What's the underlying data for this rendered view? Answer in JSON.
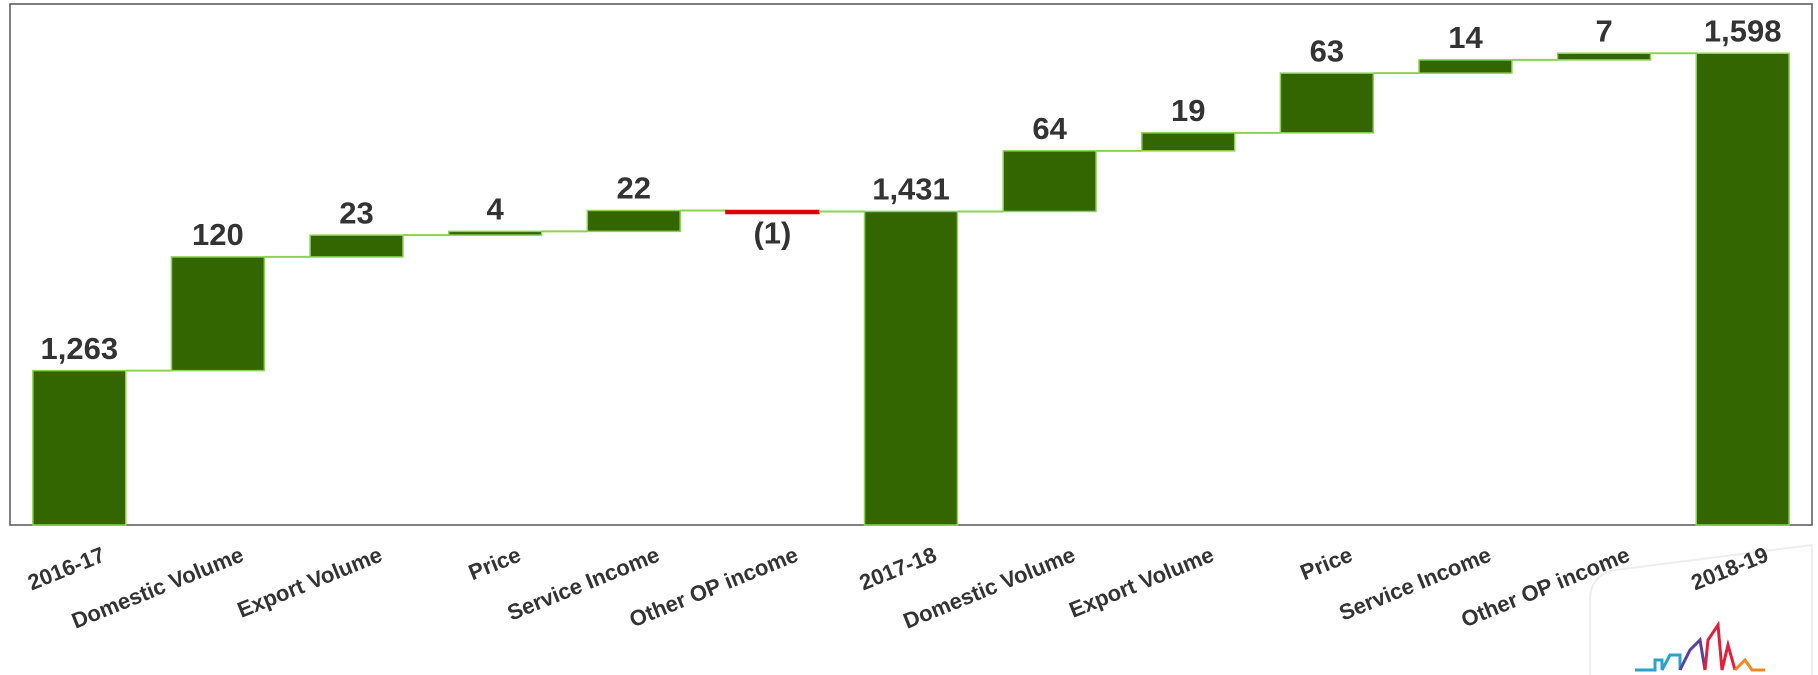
{
  "chart_data": {
    "type": "waterfall",
    "categories": [
      "2016-17",
      "Domestic Volume",
      "Export Volume",
      "Price",
      "Service Income",
      "Other OP income",
      "2017-18",
      "Domestic Volume",
      "Export Volume",
      "Price",
      "Service Income",
      "Other OP income",
      "2018-19"
    ],
    "values": [
      1263,
      120,
      23,
      4,
      22,
      -1,
      1431,
      64,
      19,
      63,
      14,
      7,
      1598
    ],
    "value_labels": [
      "1,263",
      "120",
      "23",
      "4",
      "22",
      "(1)",
      "1,431",
      "64",
      "19",
      "63",
      "14",
      "7",
      "1,598"
    ],
    "totals": [
      true,
      false,
      false,
      false,
      false,
      false,
      true,
      false,
      false,
      false,
      false,
      false,
      true
    ],
    "color": "#336600",
    "negative_color": "#e00000",
    "connector_color": "#8cd250",
    "ylim": [
      1100,
      1650
    ]
  }
}
